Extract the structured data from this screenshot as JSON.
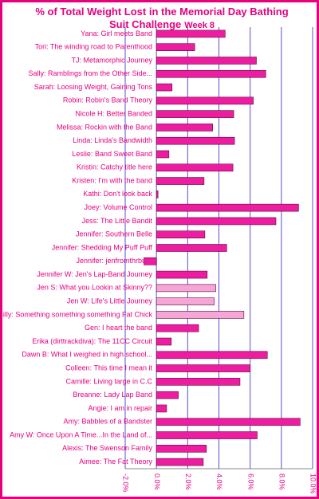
{
  "chart_data": {
    "type": "hbar",
    "title": "% of Total Weight Lost in the Memorial Day Bathing Suit Challenge",
    "subtitle": "Week  8",
    "categories": [
      "Yana: Girl meets Band",
      "Tori: The winding road to Parenthood",
      "TJ: Metamorphic Journey",
      "Sally: Ramblings from the Other Side...",
      "Sarah: Loosing Weight, Gaining Tons",
      "Robin: Robin's Band Theory",
      "Nicole H: Better Banded",
      "Melissa: Rockin with the Band",
      "Linda: Linda's Bandwidth",
      "Leslie: Band Sweet Band",
      "Kristin: Catchy title here",
      "Kristen: I'm with the band",
      "Kathi: Don't look back",
      "Joey: Volume Control",
      "Jess: The Little Bandit",
      "Jennifer: Southern Belle",
      "Jennifer: Shedding My Puff Puff",
      "Jennifer: jenfromthrburg",
      "Jennifer W: Jen's Lap-Band Journey",
      "Jen S: What you Lookin at Skinny??",
      "Jen W: Life's Little Journey",
      "Gilly: Something something something Fat Chick",
      "Gen: I heart the band",
      "Erika (dirttrackdiva): The 11CC Circuit",
      "Dawn B: What I weighed in high school...",
      "Colleen: This time I mean it",
      "Camille: Living large in C.C",
      "Breanne: Lady Lap Band",
      "Angie: I am in repair",
      "Amy: Babbles of a Bandster",
      "Amy W: Once Upon A Time...In the Land of...",
      "Alexis: The Swenson Family",
      "Aimee: The Fat Theory"
    ],
    "values": [
      4.4,
      2.45,
      6.4,
      7.0,
      1.0,
      6.2,
      4.95,
      3.6,
      5.0,
      0.8,
      4.9,
      3.05,
      0.1,
      9.1,
      7.65,
      3.1,
      4.5,
      -0.8,
      3.25,
      3.8,
      3.7,
      5.6,
      2.7,
      0.95,
      7.1,
      6.0,
      5.35,
      1.4,
      0.65,
      9.2,
      6.45,
      3.2,
      3.0
    ],
    "colors": [
      "#ee1ca0",
      "#ee1ca0",
      "#ee1ca0",
      "#ee1ca0",
      "#ee1ca0",
      "#ee1ca0",
      "#ee1ca0",
      "#ee1ca0",
      "#ee1ca0",
      "#ee1ca0",
      "#ee1ca0",
      "#ee1ca0",
      "#ee1ca0",
      "#ee1ca0",
      "#ee1ca0",
      "#ee1ca0",
      "#ee1ca0",
      "#ee1ca0",
      "#ee1ca0",
      "#f6a6d6",
      "#f6a6d6",
      "#f6a6d6",
      "#ee1ca0",
      "#ee1ca0",
      "#ee1ca0",
      "#ee1ca0",
      "#ee1ca0",
      "#ee1ca0",
      "#ee1ca0",
      "#ee1ca0",
      "#ee1ca0",
      "#ee1ca0",
      "#ee1ca0"
    ],
    "xlim": [
      -2,
      10
    ],
    "xticks": [
      {
        "value": -2,
        "label": "-2.0%"
      },
      {
        "value": 0,
        "label": "0.0%"
      },
      {
        "value": 2,
        "label": "2.0%"
      },
      {
        "value": 4,
        "label": "4.0%"
      },
      {
        "value": 6,
        "label": "6.0%"
      },
      {
        "value": 8,
        "label": "8.0%"
      },
      {
        "value": 10,
        "label": "10.0%"
      }
    ],
    "grid": true,
    "grid_color": "#5a4fcf"
  }
}
